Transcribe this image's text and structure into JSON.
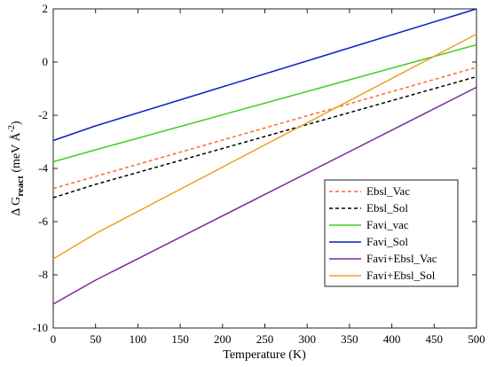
{
  "chart_data": {
    "type": "line",
    "title": "",
    "xlabel": "Temperature (K)",
    "ylabel": {
      "prefix": "Δ G",
      "subscript": "react",
      "unit_open": " (meV Å",
      "superscript": "-2",
      "unit_close": ")"
    },
    "xlim": [
      0,
      500
    ],
    "ylim": [
      -10,
      2
    ],
    "xticks": [
      0,
      50,
      100,
      150,
      200,
      250,
      300,
      350,
      400,
      450,
      500
    ],
    "yticks": [
      -10,
      -8,
      -6,
      -4,
      -2,
      0,
      2
    ],
    "grid": false,
    "legend_position": "lower-right",
    "x": [
      0,
      50,
      500
    ],
    "series": [
      {
        "name": "Ebsl_Vac",
        "color": "#ff6a2a",
        "style": "dashed",
        "values": [
          -4.75,
          -4.3,
          -0.2
        ]
      },
      {
        "name": "Ebsl_Sol",
        "color": "#000000",
        "style": "dashed",
        "values": [
          -5.1,
          -4.6,
          -0.55
        ]
      },
      {
        "name": "Favi_vac",
        "color": "#44cc22",
        "style": "solid",
        "values": [
          -3.75,
          -3.3,
          0.65
        ]
      },
      {
        "name": "Favi_Sol",
        "color": "#0a1fc8",
        "style": "solid",
        "values": [
          -2.95,
          -2.4,
          2.0
        ]
      },
      {
        "name": "Favi+Ebsl_Vac",
        "color": "#7a2a9a",
        "style": "solid",
        "values": [
          -9.1,
          -8.2,
          -0.95
        ]
      },
      {
        "name": "Favi+Ebsl_Sol",
        "color": "#f0a020",
        "style": "solid",
        "values": [
          -7.4,
          -6.45,
          1.05
        ]
      }
    ]
  }
}
